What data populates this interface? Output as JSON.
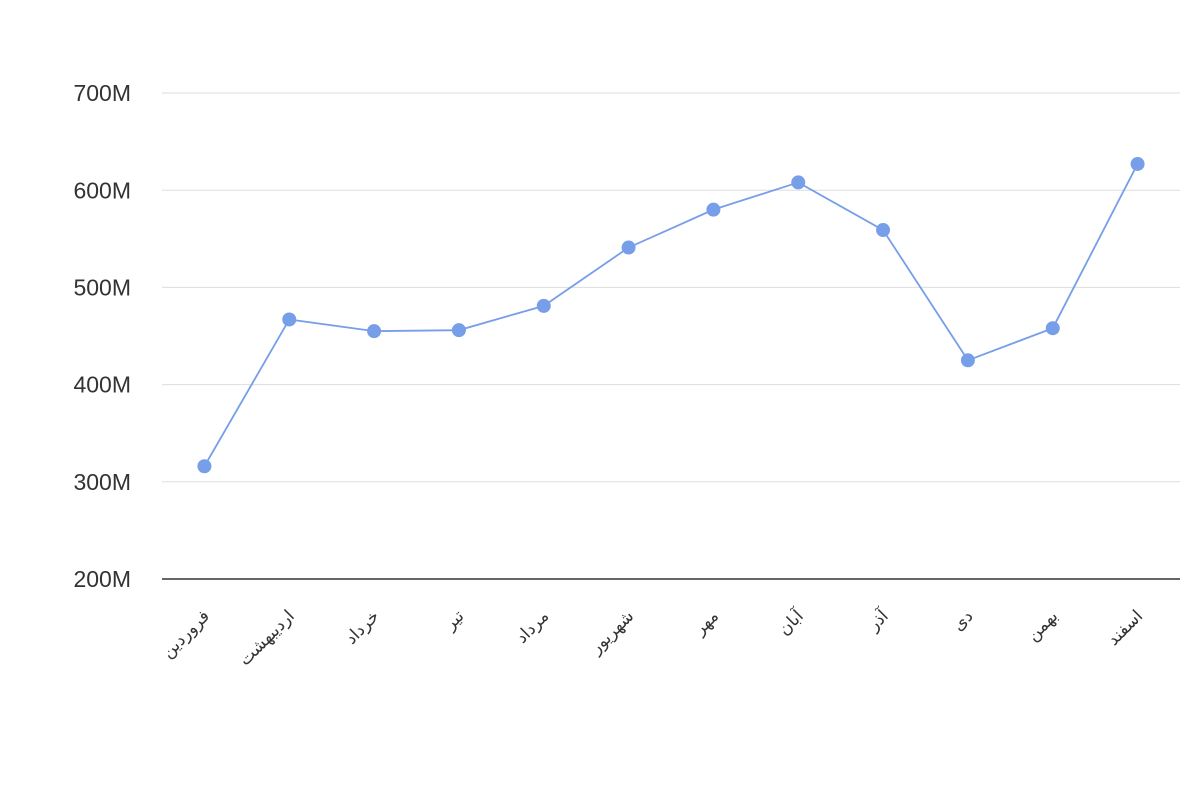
{
  "chart_data": {
    "type": "line",
    "categories": [
      "فروردین",
      "اردیبهشت",
      "خرداد",
      "تیر",
      "مرداد",
      "شهریور",
      "مهر",
      "آبان",
      "آذر",
      "دی",
      "بهمن",
      "اسفند"
    ],
    "series": [
      {
        "color": "#779ee8",
        "values": [
          316000000,
          467000000,
          455000000,
          456000000,
          481000000,
          541000000,
          580000000,
          608000000,
          559000000,
          425000000,
          458000000,
          627000000
        ]
      }
    ],
    "ylim": [
      200000000,
      700000000
    ],
    "yticks": [
      {
        "value": 200000000,
        "label": "200M"
      },
      {
        "value": 300000000,
        "label": "300M"
      },
      {
        "value": 400000000,
        "label": "400M"
      },
      {
        "value": 500000000,
        "label": "500M"
      },
      {
        "value": 600000000,
        "label": "600M"
      },
      {
        "value": 700000000,
        "label": "700M"
      }
    ],
    "grid": true
  }
}
